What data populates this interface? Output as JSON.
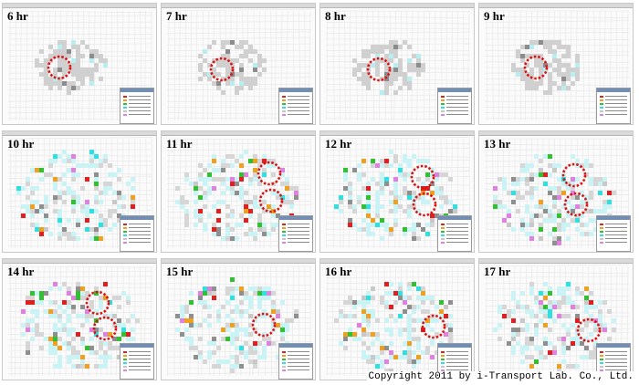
{
  "panels": [
    {
      "hour": "6 hr"
    },
    {
      "hour": "7 hr"
    },
    {
      "hour": "8 hr"
    },
    {
      "hour": "9 hr"
    },
    {
      "hour": "10 hr"
    },
    {
      "hour": "11 hr"
    },
    {
      "hour": "12 hr"
    },
    {
      "hour": "13 hr"
    },
    {
      "hour": "14 hr"
    },
    {
      "hour": "15 hr"
    },
    {
      "hour": "16 hr"
    },
    {
      "hour": "17 hr"
    }
  ],
  "legend_colors": [
    "#e02020",
    "#f0a020",
    "#30c030",
    "#30e0e0",
    "#c8c8c8",
    "#e080e0"
  ],
  "highlight_color": "#dd1111",
  "copyright": "Copyright 2011 by i-Transport Lab. Co., Ltd."
}
